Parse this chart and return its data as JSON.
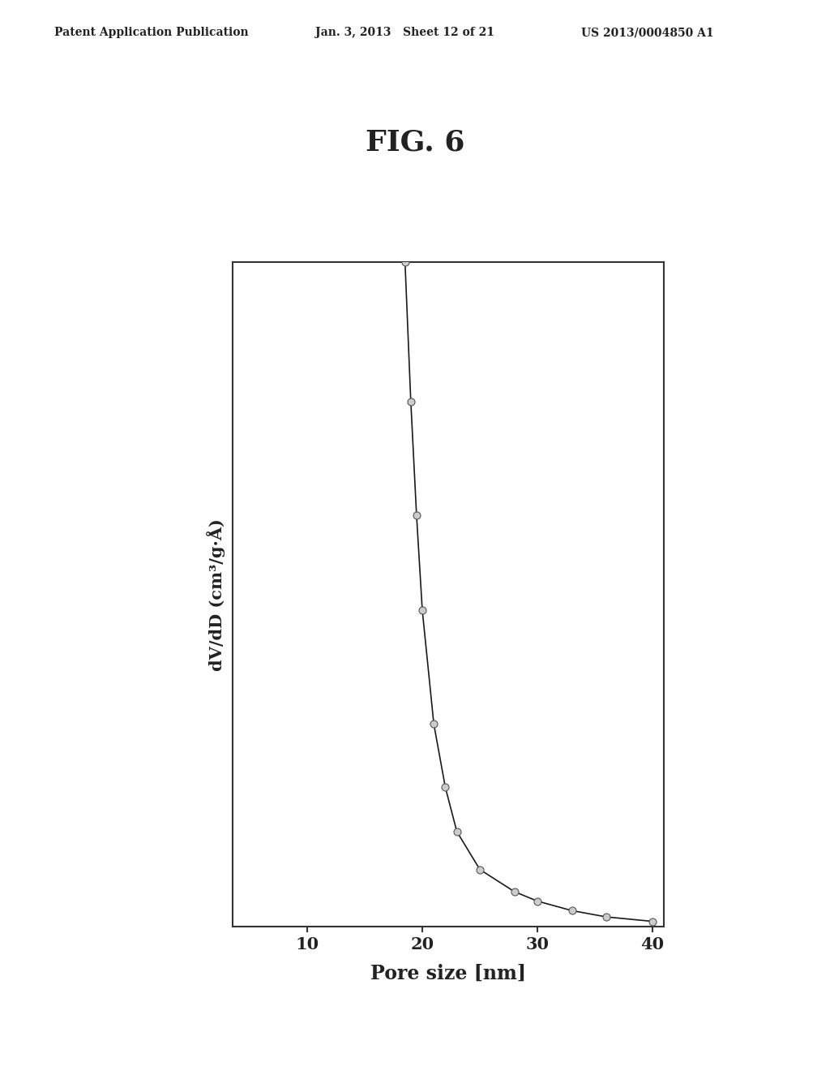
{
  "title": "FIG. 6",
  "xlabel": "Pore size [nm]",
  "ylabel": "dV/dD (cm³/g·Å)",
  "header_left": "Patent Application Publication",
  "header_center": "Jan. 3, 2013   Sheet 12 of 21",
  "header_right": "US 2013/0004850 A1",
  "xlim": [
    3.5,
    41
  ],
  "ylim": [
    0,
    1.05
  ],
  "xticks": [
    10,
    20,
    30,
    40
  ],
  "background_color": "#ffffff",
  "line_color": "#1a1a1a",
  "marker_facecolor": "#cccccc",
  "marker_edgecolor": "#555555",
  "x": [
    3.5,
    3.7,
    3.9,
    4.1,
    4.3,
    4.5,
    4.7,
    4.9,
    5.1,
    5.3,
    5.5,
    5.7,
    5.9,
    6.1,
    6.3,
    6.5,
    6.7,
    6.9,
    7.1,
    7.3,
    7.5,
    7.7,
    7.9,
    8.1,
    8.3,
    8.5,
    8.7,
    8.9,
    9.1,
    9.3,
    9.5,
    9.7,
    9.9,
    10.1,
    10.3,
    10.5,
    10.7,
    10.9,
    11.1,
    11.4,
    11.7,
    12.0,
    12.3,
    12.6,
    12.9,
    13.2,
    13.5,
    13.8,
    14.1,
    14.4,
    14.7,
    15.0,
    15.5,
    16.0,
    16.5,
    17.0,
    17.5,
    18.0,
    18.5,
    19.0,
    19.5,
    20.0,
    21.0,
    22.0,
    23.0,
    25.0,
    28.0,
    30.0,
    33.0,
    36.0,
    40.0
  ],
  "y": [
    5.5,
    6.2,
    7.0,
    7.5,
    8.0,
    8.3,
    8.5,
    8.5,
    8.4,
    8.2,
    7.9,
    7.6,
    7.2,
    6.8,
    6.3,
    5.8,
    5.3,
    4.8,
    4.3,
    3.85,
    3.5,
    3.2,
    2.9,
    2.65,
    2.45,
    2.28,
    2.15,
    2.05,
    1.98,
    1.95,
    1.95,
    1.97,
    2.0,
    2.05,
    2.12,
    2.22,
    2.33,
    2.45,
    2.58,
    2.78,
    2.98,
    3.18,
    3.38,
    3.55,
    3.68,
    3.78,
    3.85,
    3.88,
    3.85,
    3.75,
    3.58,
    3.38,
    3.05,
    2.68,
    2.3,
    1.95,
    1.62,
    1.32,
    1.05,
    0.83,
    0.65,
    0.5,
    0.32,
    0.22,
    0.15,
    0.09,
    0.055,
    0.04,
    0.025,
    0.015,
    0.008
  ]
}
